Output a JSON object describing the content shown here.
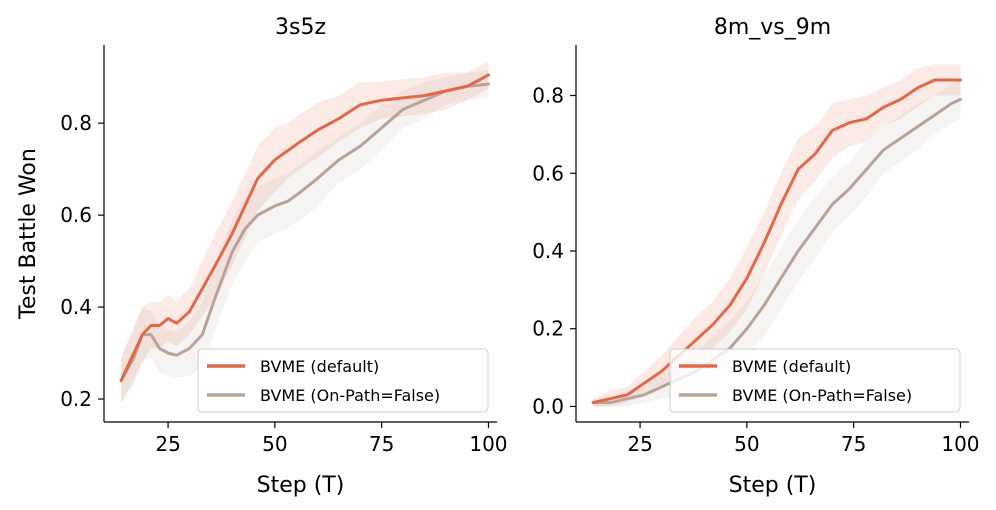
{
  "chart_data": [
    {
      "type": "line",
      "title": "3s5z",
      "xlabel": "Step (T)",
      "ylabel": "Test Battle Won",
      "xlim": [
        10,
        102
      ],
      "ylim": [
        0.15,
        0.97
      ],
      "xticks": [
        25,
        50,
        75,
        100
      ],
      "yticks": [
        0.2,
        0.4,
        0.6,
        0.8
      ],
      "xtick_labels": [
        "25",
        "50",
        "75",
        "100"
      ],
      "ytick_labels": [
        "0.2",
        "0.4",
        "0.6",
        "0.8"
      ],
      "legend_position": "bottom-right",
      "series": [
        {
          "name": "BVME (default)",
          "color": "#e0694a",
          "x": [
            14,
            17,
            19,
            21,
            23,
            25,
            27,
            30,
            33,
            36,
            40,
            43,
            46,
            50,
            53,
            56,
            60,
            65,
            70,
            75,
            80,
            85,
            90,
            95,
            100
          ],
          "y": [
            0.24,
            0.3,
            0.34,
            0.36,
            0.36,
            0.375,
            0.365,
            0.39,
            0.44,
            0.49,
            0.56,
            0.62,
            0.68,
            0.72,
            0.74,
            0.76,
            0.785,
            0.81,
            0.84,
            0.85,
            0.855,
            0.86,
            0.87,
            0.88,
            0.905
          ],
          "band": [
            0.05,
            0.06,
            0.06,
            0.05,
            0.05,
            0.05,
            0.05,
            0.05,
            0.06,
            0.07,
            0.07,
            0.07,
            0.07,
            0.07,
            0.06,
            0.06,
            0.06,
            0.05,
            0.05,
            0.04,
            0.04,
            0.04,
            0.04,
            0.03,
            0.03
          ]
        },
        {
          "name": "BVME (On-Path=False)",
          "color": "#b9a398",
          "x": [
            14,
            17,
            19,
            21,
            23,
            25,
            27,
            30,
            33,
            36,
            40,
            43,
            46,
            50,
            53,
            56,
            60,
            65,
            70,
            75,
            80,
            85,
            90,
            95,
            100
          ],
          "y": [
            0.24,
            0.29,
            0.34,
            0.34,
            0.31,
            0.3,
            0.295,
            0.31,
            0.34,
            0.42,
            0.52,
            0.57,
            0.6,
            0.62,
            0.63,
            0.65,
            0.68,
            0.72,
            0.75,
            0.79,
            0.83,
            0.85,
            0.87,
            0.88,
            0.885
          ],
          "band": [
            0.05,
            0.06,
            0.06,
            0.05,
            0.05,
            0.05,
            0.05,
            0.06,
            0.07,
            0.07,
            0.07,
            0.07,
            0.06,
            0.06,
            0.06,
            0.06,
            0.06,
            0.05,
            0.05,
            0.05,
            0.04,
            0.04,
            0.03,
            0.03,
            0.03
          ]
        }
      ]
    },
    {
      "type": "line",
      "title": "8m_vs_9m",
      "xlabel": "Step (T)",
      "ylabel": "",
      "xlim": [
        10,
        102
      ],
      "ylim": [
        -0.04,
        0.93
      ],
      "xticks": [
        25,
        50,
        75,
        100
      ],
      "yticks": [
        0.0,
        0.2,
        0.4,
        0.6,
        0.8
      ],
      "xtick_labels": [
        "25",
        "50",
        "75",
        "100"
      ],
      "ytick_labels": [
        "0.0",
        "0.2",
        "0.4",
        "0.6",
        "0.8"
      ],
      "legend_position": "bottom-right",
      "series": [
        {
          "name": "BVME (default)",
          "color": "#e0694a",
          "x": [
            14,
            18,
            22,
            26,
            30,
            34,
            38,
            42,
            46,
            50,
            54,
            58,
            62,
            66,
            70,
            74,
            78,
            82,
            86,
            90,
            94,
            98,
            100
          ],
          "y": [
            0.01,
            0.02,
            0.03,
            0.06,
            0.09,
            0.13,
            0.17,
            0.21,
            0.26,
            0.33,
            0.42,
            0.52,
            0.61,
            0.65,
            0.71,
            0.73,
            0.74,
            0.77,
            0.79,
            0.82,
            0.84,
            0.84,
            0.84
          ],
          "band": [
            0.01,
            0.02,
            0.02,
            0.03,
            0.04,
            0.05,
            0.06,
            0.06,
            0.07,
            0.08,
            0.08,
            0.08,
            0.08,
            0.07,
            0.07,
            0.06,
            0.06,
            0.05,
            0.05,
            0.05,
            0.04,
            0.04,
            0.04
          ]
        },
        {
          "name": "BVME (On-Path=False)",
          "color": "#b9a398",
          "x": [
            14,
            18,
            22,
            26,
            30,
            34,
            38,
            42,
            46,
            50,
            54,
            58,
            62,
            66,
            70,
            74,
            78,
            82,
            86,
            90,
            94,
            98,
            100
          ],
          "y": [
            0.01,
            0.01,
            0.02,
            0.03,
            0.05,
            0.07,
            0.09,
            0.12,
            0.15,
            0.2,
            0.26,
            0.33,
            0.4,
            0.46,
            0.52,
            0.56,
            0.61,
            0.66,
            0.69,
            0.72,
            0.75,
            0.78,
            0.79
          ],
          "band": [
            0.01,
            0.01,
            0.02,
            0.02,
            0.03,
            0.04,
            0.05,
            0.06,
            0.07,
            0.07,
            0.08,
            0.08,
            0.08,
            0.08,
            0.07,
            0.07,
            0.07,
            0.06,
            0.06,
            0.06,
            0.05,
            0.05,
            0.05
          ]
        }
      ]
    }
  ]
}
